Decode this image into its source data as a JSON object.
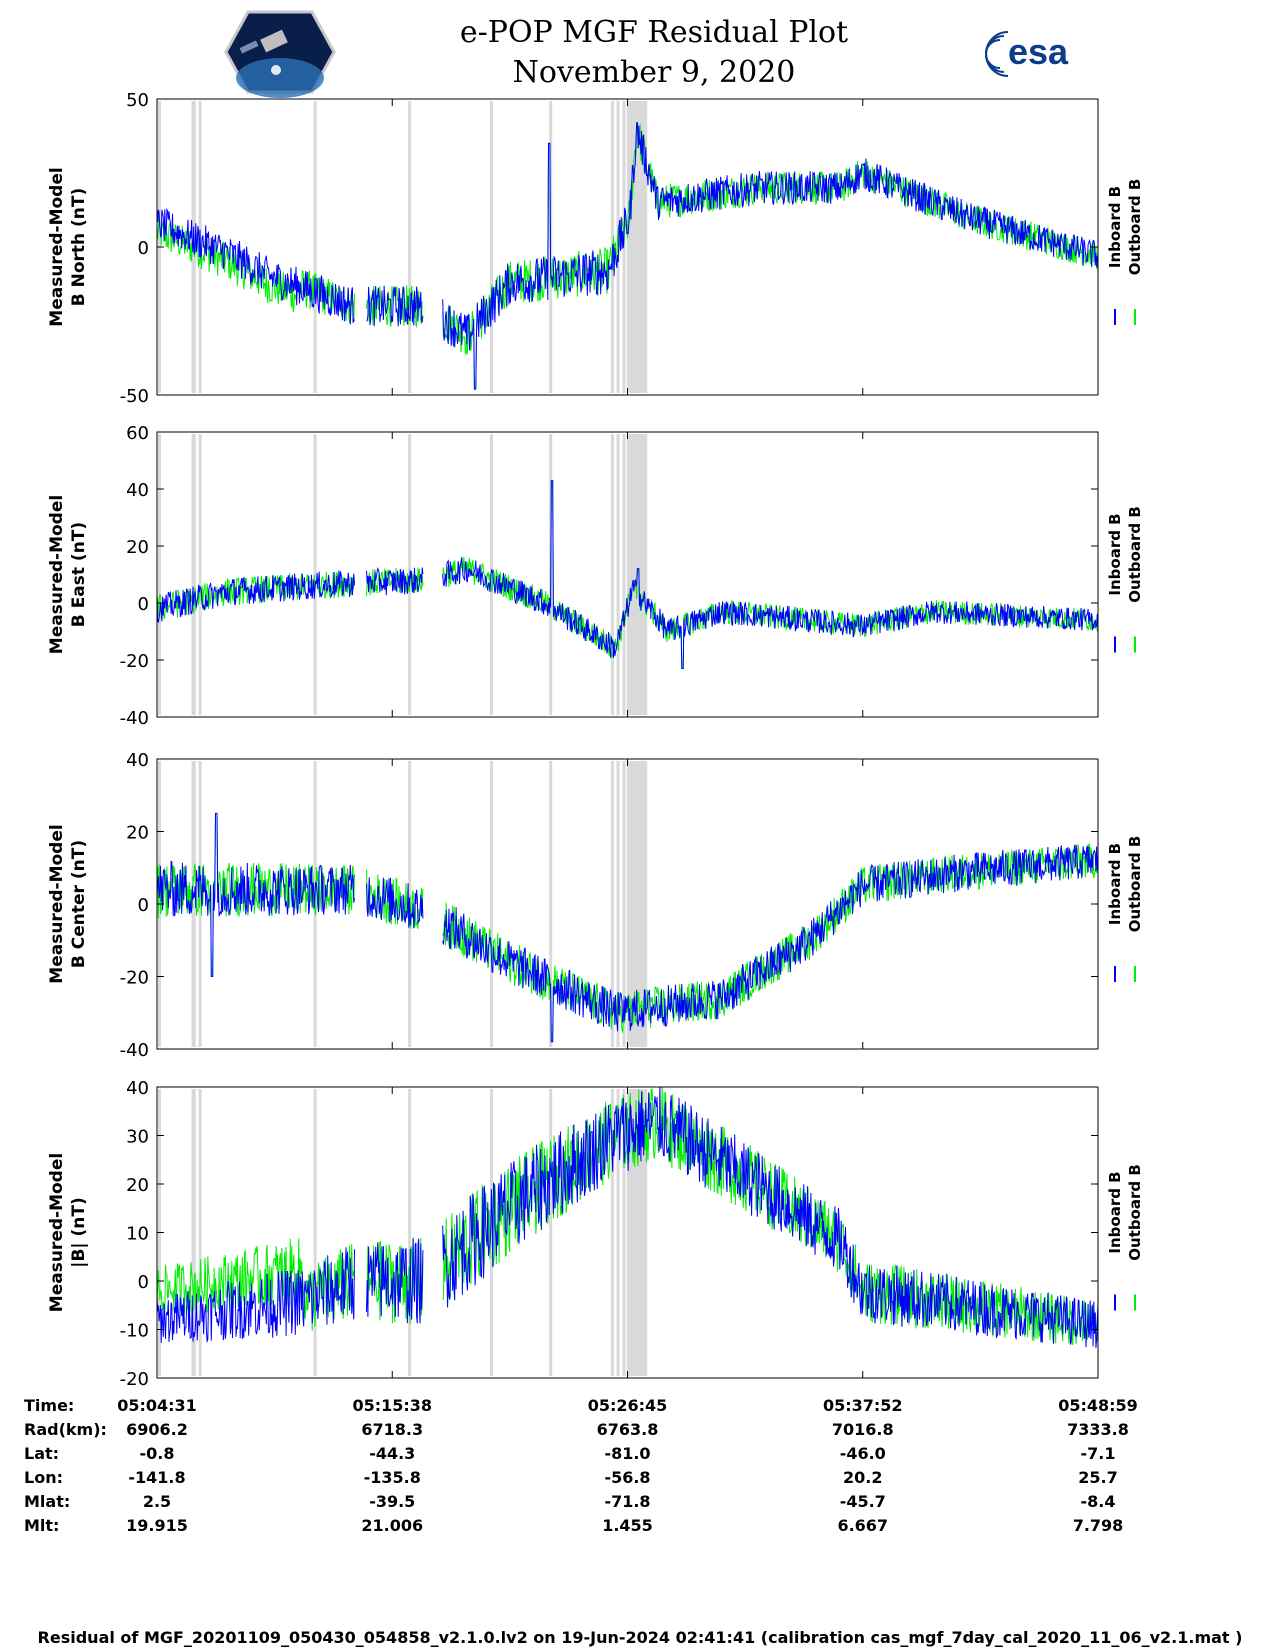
{
  "title_line1": "e-POP MGF Residual Plot",
  "title_line2": "November 9, 2020",
  "logo_text": "esa",
  "colors": {
    "inboard": "#0000ff",
    "outboard": "#00ee00",
    "gap": "#d9d9d9"
  },
  "chart_data": [
    {
      "type": "line",
      "ylabel": [
        "Measured-Model",
        "B North (nT)"
      ],
      "ylim": [
        -50,
        50
      ],
      "yticks": [
        -50,
        0,
        50
      ],
      "series": [
        {
          "name": "Inboard B"
        },
        {
          "name": "Outboard B"
        }
      ]
    },
    {
      "type": "line",
      "ylabel": [
        "Measured-Model",
        "B East (nT)"
      ],
      "ylim": [
        -40,
        60
      ],
      "yticks": [
        -40,
        -20,
        0,
        20,
        40,
        60
      ],
      "series": [
        {
          "name": "Inboard B"
        },
        {
          "name": "Outboard B"
        }
      ]
    },
    {
      "type": "line",
      "ylabel": [
        "Measured-Model",
        "B Center (nT)"
      ],
      "ylim": [
        -40,
        40
      ],
      "yticks": [
        -40,
        -20,
        0,
        20,
        40
      ],
      "series": [
        {
          "name": "Inboard B"
        },
        {
          "name": "Outboard B"
        }
      ]
    },
    {
      "type": "line",
      "ylabel": [
        "Measured-Model",
        "|B| (nT)"
      ],
      "ylim": [
        -20,
        40
      ],
      "yticks": [
        -20,
        -10,
        0,
        10,
        20,
        30,
        40
      ],
      "series": [
        {
          "name": "Inboard B"
        },
        {
          "name": "Outboard B"
        }
      ]
    }
  ],
  "x_axis": {
    "start_seconds": 0,
    "end_seconds": 2668,
    "tick_seconds": [
      0,
      667,
      1334,
      2001,
      2668
    ]
  },
  "gaps_seconds": [
    [
      3,
      6
    ],
    [
      98,
      110
    ],
    [
      118,
      122
    ],
    [
      444,
      449
    ],
    [
      712,
      717
    ],
    [
      944,
      949
    ],
    [
      1112,
      1117
    ],
    [
      1287,
      1292
    ],
    [
      1303,
      1309
    ],
    [
      1320,
      1326
    ],
    [
      1332,
      1390
    ]
  ],
  "orbit_table": {
    "labels": [
      "Time:",
      "Rad(km):",
      "Lat:",
      "Lon:",
      "Mlat:",
      "Mlt:"
    ],
    "columns": [
      [
        "05:04:31",
        "6906.2",
        "-0.8",
        "-141.8",
        "2.5",
        "19.915"
      ],
      [
        "05:15:38",
        "6718.3",
        "-44.3",
        "-135.8",
        "-39.5",
        "21.006"
      ],
      [
        "05:26:45",
        "6763.8",
        "-81.0",
        "-56.8",
        "-71.8",
        "1.455"
      ],
      [
        "05:37:52",
        "7016.8",
        "-46.0",
        "20.2",
        "-45.7",
        "6.667"
      ],
      [
        "05:48:59",
        "7333.8",
        "-7.1",
        "25.7",
        "-8.4",
        "7.798"
      ]
    ]
  },
  "footer": "Residual of MGF_20201109_050430_054858_v2.1.0.lv2 on 19-Jun-2024 02:41:41 (calibration cas_mgf_7day_cal_2020_11_06_v2.1.mat )"
}
